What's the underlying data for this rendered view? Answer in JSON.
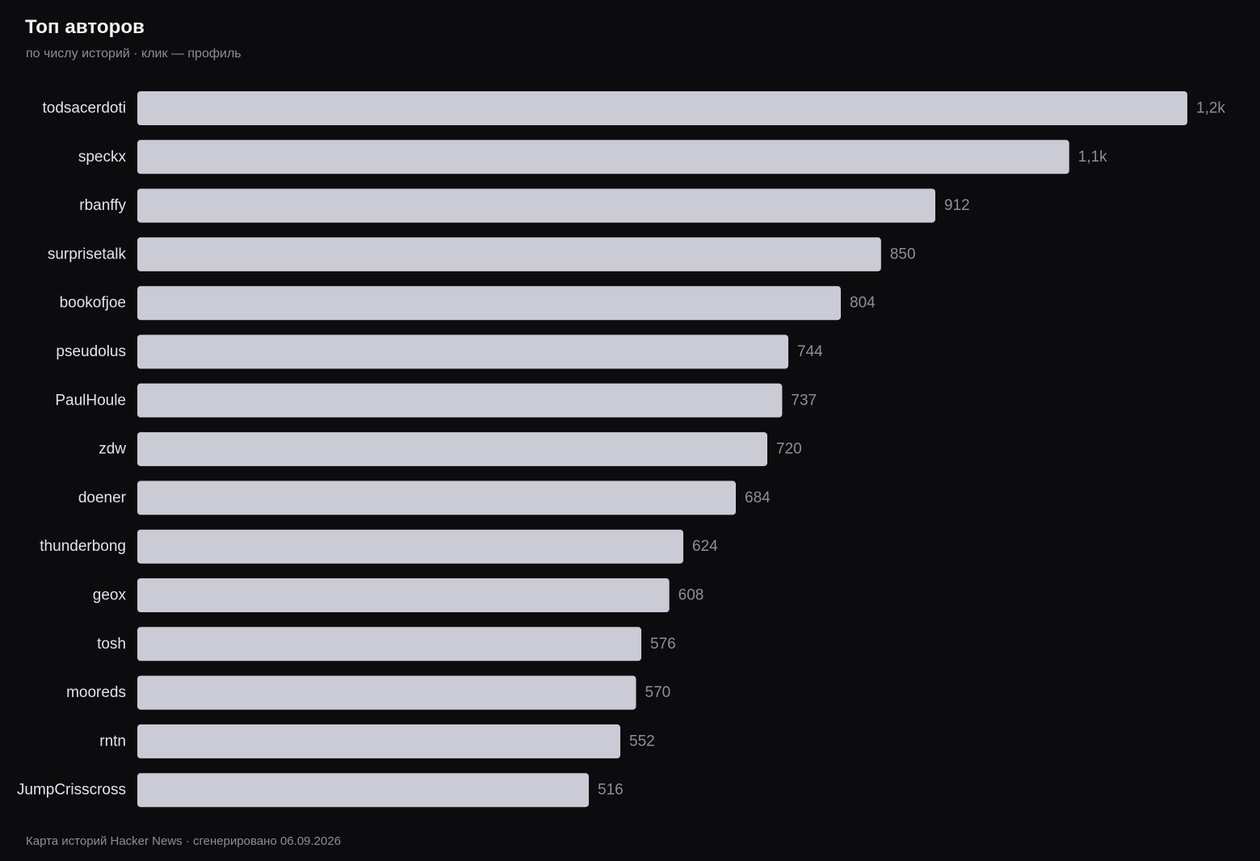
{
  "header": {
    "title": "Топ авторов",
    "subtitle": "по числу историй · клик — профиль"
  },
  "footer": {
    "text": "Карта историй Hacker News · сгенерировано 06.09.2026"
  },
  "colors": {
    "background": "#0c0c0e",
    "bar": "#cbcbd6",
    "label": "#e3e3e8",
    "value": "#8e8e97"
  },
  "chart_data": {
    "type": "bar",
    "orientation": "horizontal",
    "title": "Топ авторов",
    "subtitle": "по числу историй · клик — профиль",
    "categories": [
      "todsacerdoti",
      "speckx",
      "rbanffy",
      "surprisetalk",
      "bookofjoe",
      "pseudolus",
      "PaulHoule",
      "zdw",
      "doener",
      "thunderbong",
      "geox",
      "tosh",
      "mooreds",
      "rntn",
      "JumpCrisscross"
    ],
    "values": [
      1200,
      1065,
      912,
      850,
      804,
      744,
      737,
      720,
      684,
      624,
      608,
      576,
      570,
      552,
      516
    ],
    "value_labels": [
      "1,2k",
      "1,1k",
      "912",
      "850",
      "804",
      "744",
      "737",
      "720",
      "684",
      "624",
      "608",
      "576",
      "570",
      "552",
      "516"
    ],
    "xlabel": "",
    "ylabel": "",
    "xlim": [
      0,
      1200
    ],
    "grid": false,
    "legend": "none"
  }
}
